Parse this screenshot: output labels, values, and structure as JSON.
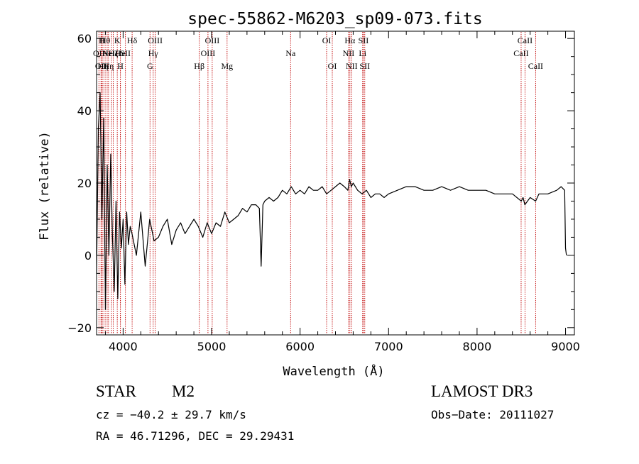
{
  "chart_data": {
    "type": "line",
    "title": "spec-55862-M6203_sp09-073.fits",
    "xlabel": "Wavelength (Å)",
    "ylabel": "Flux (relative)",
    "xlim": [
      3700,
      9100
    ],
    "ylim": [
      -22,
      62
    ],
    "x_ticks": [
      {
        "value": 4000,
        "label": "4000"
      },
      {
        "value": 5000,
        "label": "5000"
      },
      {
        "value": 6000,
        "label": "6000"
      },
      {
        "value": 7000,
        "label": "7000"
      },
      {
        "value": 8000,
        "label": "8000"
      },
      {
        "value": 9000,
        "label": "9000"
      }
    ],
    "y_ticks": [
      {
        "value": 60,
        "label": "60"
      },
      {
        "value": 40,
        "label": "40"
      },
      {
        "value": 20,
        "label": "20"
      },
      {
        "value": 0,
        "label": "0"
      },
      {
        "value": -20,
        "label": "−20"
      }
    ],
    "grid": false,
    "series": [
      {
        "name": "flux",
        "x": [
          3700,
          3720,
          3740,
          3760,
          3780,
          3800,
          3820,
          3840,
          3860,
          3880,
          3900,
          3920,
          3940,
          3960,
          3980,
          4000,
          4020,
          4040,
          4060,
          4080,
          4100,
          4150,
          4200,
          4250,
          4300,
          4350,
          4400,
          4450,
          4500,
          4550,
          4600,
          4650,
          4700,
          4750,
          4800,
          4850,
          4900,
          4950,
          5000,
          5050,
          5100,
          5150,
          5200,
          5250,
          5300,
          5350,
          5400,
          5450,
          5500,
          5540,
          5560,
          5580,
          5600,
          5650,
          5700,
          5750,
          5800,
          5850,
          5900,
          5950,
          6000,
          6050,
          6100,
          6150,
          6200,
          6250,
          6300,
          6350,
          6400,
          6450,
          6500,
          6540,
          6560,
          6580,
          6600,
          6650,
          6700,
          6750,
          6800,
          6850,
          6900,
          6950,
          7000,
          7100,
          7200,
          7300,
          7400,
          7500,
          7600,
          7700,
          7800,
          7900,
          8000,
          8100,
          8200,
          8300,
          8400,
          8500,
          8520,
          8540,
          8600,
          8662,
          8700,
          8800,
          8900,
          8950,
          8990,
          9000,
          9010
        ],
        "y": [
          -5,
          35,
          45,
          10,
          38,
          -15,
          25,
          0,
          28,
          5,
          -10,
          15,
          -12,
          12,
          2,
          10,
          -8,
          12,
          3,
          8,
          6,
          0,
          12,
          -3,
          10,
          4,
          5,
          8,
          10,
          3,
          7,
          9,
          6,
          8,
          10,
          8,
          5,
          9,
          6,
          9,
          8,
          12,
          9,
          10,
          11,
          13,
          12,
          14,
          14,
          13,
          -3,
          14,
          15,
          16,
          15,
          16,
          18,
          17,
          19,
          17,
          18,
          17,
          19,
          18,
          18,
          19,
          17,
          18,
          19,
          20,
          19,
          18,
          21,
          19,
          20,
          18,
          17,
          18,
          16,
          17,
          17,
          16,
          17,
          18,
          19,
          19,
          18,
          18,
          19,
          18,
          19,
          18,
          18,
          18,
          17,
          17,
          17,
          15,
          16,
          14,
          16,
          15,
          17,
          17,
          18,
          19,
          18,
          2,
          0
        ]
      }
    ],
    "line_markers": [
      {
        "x": 3727,
        "label": "OII",
        "row": 1
      },
      {
        "x": 3750,
        "label": "OII",
        "row": 2
      },
      {
        "x": 3760,
        "label": "H",
        "row": 0
      },
      {
        "x": 3772,
        "label": "Hη",
        "row": 2
      },
      {
        "x": 3797,
        "label": "Hθ",
        "row": 0
      },
      {
        "x": 3820,
        "label": "He",
        "row": 1
      },
      {
        "x": 3835,
        "label": "Hη",
        "row": 2
      },
      {
        "x": 3869,
        "label": "NeIII",
        "row": 1
      },
      {
        "x": 3889,
        "label": "Hζ",
        "row": 1
      },
      {
        "x": 3934,
        "label": "K",
        "row": 0
      },
      {
        "x": 3969,
        "label": "H",
        "row": 2
      },
      {
        "x": 3970,
        "label": "He",
        "row": 1
      },
      {
        "x": 4026,
        "label": "SII",
        "row": 1
      },
      {
        "x": 4102,
        "label": "Hδ",
        "row": 0
      },
      {
        "x": 4304,
        "label": "G",
        "row": 2
      },
      {
        "x": 4340,
        "label": "Hγ",
        "row": 1
      },
      {
        "x": 4363,
        "label": "OIII",
        "row": 0
      },
      {
        "x": 4861,
        "label": "Hβ",
        "row": 2
      },
      {
        "x": 4959,
        "label": "OIII",
        "row": 1
      },
      {
        "x": 5007,
        "label": "OIII",
        "row": 0
      },
      {
        "x": 5175,
        "label": "Mg",
        "row": 2
      },
      {
        "x": 5893,
        "label": "Na",
        "row": 1
      },
      {
        "x": 6300,
        "label": "OI",
        "row": 0
      },
      {
        "x": 6364,
        "label": "OI",
        "row": 2
      },
      {
        "x": 6548,
        "label": "NII",
        "row": 1
      },
      {
        "x": 6563,
        "label": "Hα",
        "row": 0
      },
      {
        "x": 6583,
        "label": "NII",
        "row": 2
      },
      {
        "x": 6707,
        "label": "Li",
        "row": 1
      },
      {
        "x": 6716,
        "label": "SII",
        "row": 0
      },
      {
        "x": 6731,
        "label": "SII",
        "row": 2
      },
      {
        "x": 8498,
        "label": "CaII",
        "row": 1
      },
      {
        "x": 8542,
        "label": "CaII",
        "row": 0
      },
      {
        "x": 8662,
        "label": "CaII",
        "row": 2
      }
    ]
  },
  "info": {
    "class_label": "STAR",
    "subclass": "M2",
    "survey": "LAMOST DR3",
    "cz": "cz = −40.2 ± 29.7 km/s",
    "obs_date": "Obs−Date: 20111027",
    "coords": "RA =  46.71296, DEC =  29.29431"
  },
  "colors": {
    "spectrum": "#000000",
    "marker_line": "#c00000",
    "axis": "#000000"
  }
}
